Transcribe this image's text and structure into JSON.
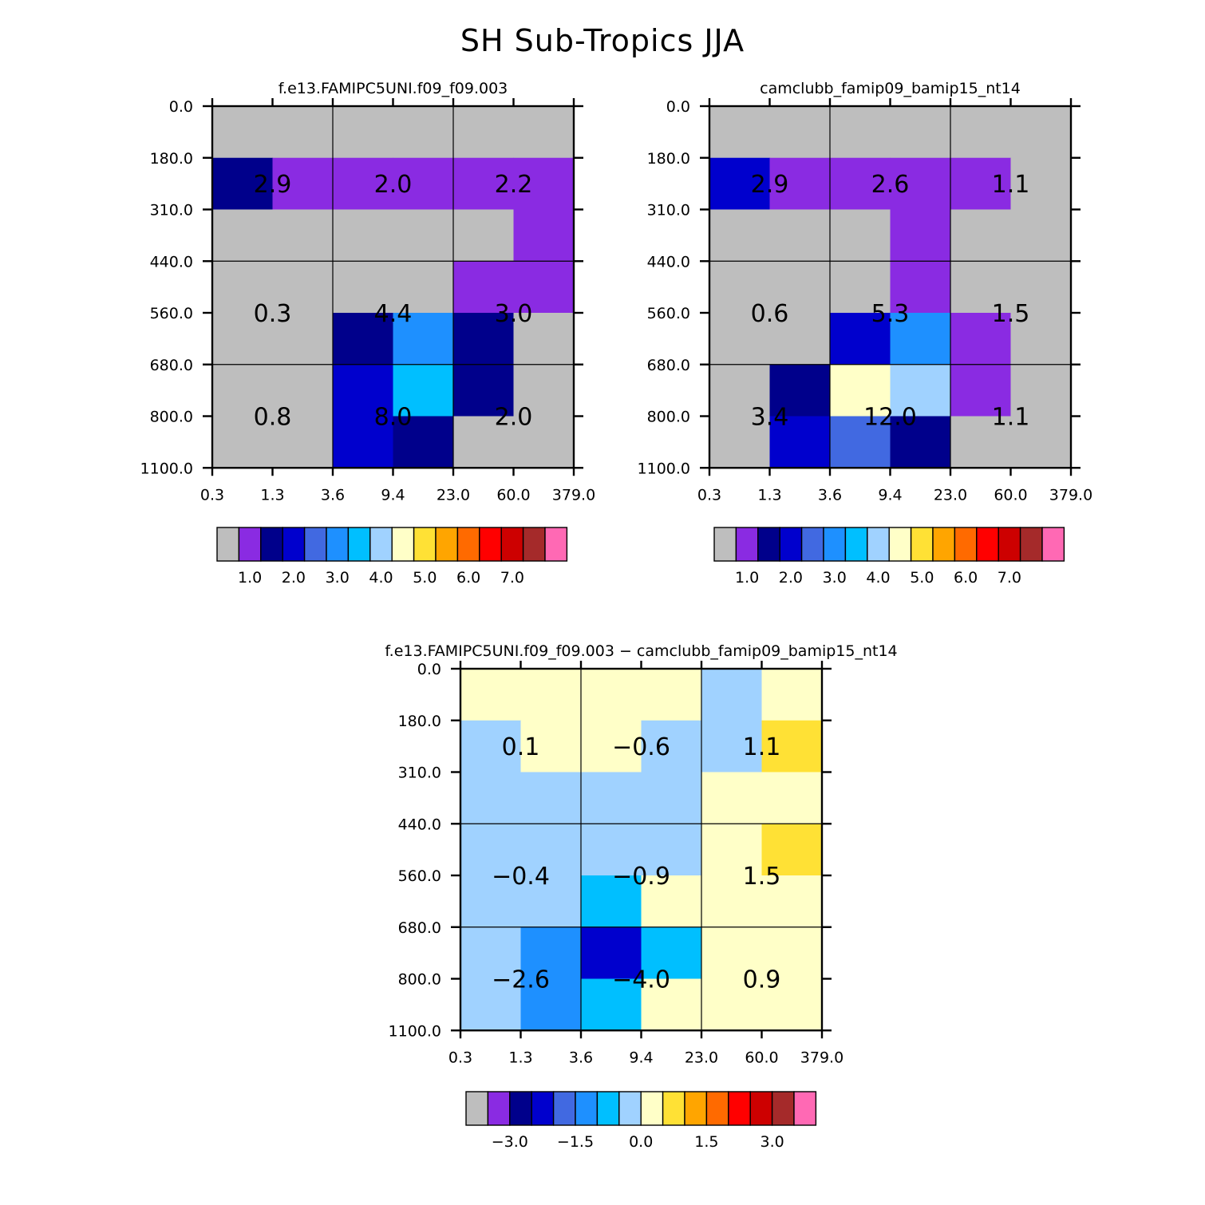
{
  "title": "SH Sub-Tropics JJA",
  "chart_data": [
    {
      "type": "heatmap",
      "title": "f.e13.FAMIPC5UNI.f09_f09.003",
      "x_ticks": [
        "0.3",
        "1.3",
        "3.6",
        "9.4",
        "23.0",
        "60.0",
        "379.0"
      ],
      "y_ticks": [
        "0.0",
        "180.0",
        "310.0",
        "440.0",
        "560.0",
        "680.0",
        "800.0",
        "1100.0"
      ],
      "cells": [
        [
          "#BEBEBE",
          "#BEBEBE",
          "#BEBEBE",
          "#BEBEBE",
          "#BEBEBE",
          "#BEBEBE"
        ],
        [
          "#00008B",
          "#8A2BE2",
          "#8A2BE2",
          "#8A2BE2",
          "#8A2BE2",
          "#8A2BE2"
        ],
        [
          "#BEBEBE",
          "#BEBEBE",
          "#BEBEBE",
          "#BEBEBE",
          "#BEBEBE",
          "#8A2BE2"
        ],
        [
          "#BEBEBE",
          "#BEBEBE",
          "#BEBEBE",
          "#BEBEBE",
          "#8A2BE2",
          "#8A2BE2"
        ],
        [
          "#BEBEBE",
          "#BEBEBE",
          "#00008B",
          "#1E90FF",
          "#00008B",
          "#BEBEBE"
        ],
        [
          "#BEBEBE",
          "#BEBEBE",
          "#0000CD",
          "#00BFFF",
          "#00008B",
          "#BEBEBE"
        ],
        [
          "#BEBEBE",
          "#BEBEBE",
          "#0000CD",
          "#00008B",
          "#BEBEBE",
          "#BEBEBE"
        ]
      ],
      "value_labels": [
        {
          "text": "2.9",
          "col": 1,
          "row": 1.5
        },
        {
          "text": "2.0",
          "col": 3,
          "row": 1.5
        },
        {
          "text": "2.2",
          "col": 5,
          "row": 1.5
        },
        {
          "text": "0.3",
          "col": 1,
          "row": 4
        },
        {
          "text": "4.4",
          "col": 3,
          "row": 4
        },
        {
          "text": "3.0",
          "col": 5,
          "row": 4
        },
        {
          "text": "0.8",
          "col": 1,
          "row": 6
        },
        {
          "text": "8.0",
          "col": 3,
          "row": 6
        },
        {
          "text": "2.0",
          "col": 5,
          "row": 6
        }
      ],
      "colorbar_colors": [
        "#BEBEBE",
        "#8A2BE2",
        "#00008B",
        "#0000CD",
        "#4169E1",
        "#1E90FF",
        "#00BFFF",
        "#A0D2FF",
        "#FFFFC8",
        "#FFE135",
        "#FFA500",
        "#FF6A00",
        "#FF0000",
        "#CD0000",
        "#A52A2A",
        "#FF69B4"
      ],
      "colorbar_labels": [
        "1.0",
        "2.0",
        "3.0",
        "4.0",
        "5.0",
        "6.0",
        "7.0"
      ],
      "colorbar_label_start": 1
    },
    {
      "type": "heatmap",
      "title": "camclubb_famip09_bamip15_nt14",
      "x_ticks": [
        "0.3",
        "1.3",
        "3.6",
        "9.4",
        "23.0",
        "60.0",
        "379.0"
      ],
      "y_ticks": [
        "0.0",
        "180.0",
        "310.0",
        "440.0",
        "560.0",
        "680.0",
        "800.0",
        "1100.0"
      ],
      "cells": [
        [
          "#BEBEBE",
          "#BEBEBE",
          "#BEBEBE",
          "#BEBEBE",
          "#BEBEBE",
          "#BEBEBE"
        ],
        [
          "#0000CD",
          "#8A2BE2",
          "#8A2BE2",
          "#8A2BE2",
          "#8A2BE2",
          "#BEBEBE"
        ],
        [
          "#BEBEBE",
          "#BEBEBE",
          "#BEBEBE",
          "#8A2BE2",
          "#BEBEBE",
          "#BEBEBE"
        ],
        [
          "#BEBEBE",
          "#BEBEBE",
          "#BEBEBE",
          "#8A2BE2",
          "#BEBEBE",
          "#BEBEBE"
        ],
        [
          "#BEBEBE",
          "#BEBEBE",
          "#0000CD",
          "#1E90FF",
          "#8A2BE2",
          "#BEBEBE"
        ],
        [
          "#BEBEBE",
          "#00008B",
          "#FFFFC8",
          "#A0D2FF",
          "#8A2BE2",
          "#BEBEBE"
        ],
        [
          "#BEBEBE",
          "#0000CD",
          "#4169E1",
          "#00008B",
          "#BEBEBE",
          "#BEBEBE"
        ]
      ],
      "value_labels": [
        {
          "text": "2.9",
          "col": 1,
          "row": 1.5
        },
        {
          "text": "2.6",
          "col": 3,
          "row": 1.5
        },
        {
          "text": "1.1",
          "col": 5,
          "row": 1.5
        },
        {
          "text": "0.6",
          "col": 1,
          "row": 4
        },
        {
          "text": "5.3",
          "col": 3,
          "row": 4
        },
        {
          "text": "1.5",
          "col": 5,
          "row": 4
        },
        {
          "text": "3.4",
          "col": 1,
          "row": 6
        },
        {
          "text": "12.0",
          "col": 3,
          "row": 6
        },
        {
          "text": "1.1",
          "col": 5,
          "row": 6
        }
      ],
      "colorbar_colors": [
        "#BEBEBE",
        "#8A2BE2",
        "#00008B",
        "#0000CD",
        "#4169E1",
        "#1E90FF",
        "#00BFFF",
        "#A0D2FF",
        "#FFFFC8",
        "#FFE135",
        "#FFA500",
        "#FF6A00",
        "#FF0000",
        "#CD0000",
        "#A52A2A",
        "#FF69B4"
      ],
      "colorbar_labels": [
        "1.0",
        "2.0",
        "3.0",
        "4.0",
        "5.0",
        "6.0",
        "7.0"
      ],
      "colorbar_label_start": 1
    },
    {
      "type": "heatmap",
      "title": "f.e13.FAMIPC5UNI.f09_f09.003 − camclubb_famip09_bamip15_nt14",
      "x_ticks": [
        "0.3",
        "1.3",
        "3.6",
        "9.4",
        "23.0",
        "60.0",
        "379.0"
      ],
      "y_ticks": [
        "0.0",
        "180.0",
        "310.0",
        "440.0",
        "560.0",
        "680.0",
        "800.0",
        "1100.0"
      ],
      "cells": [
        [
          "#FFFFC8",
          "#FFFFC8",
          "#FFFFC8",
          "#FFFFC8",
          "#A0D2FF",
          "#FFFFC8"
        ],
        [
          "#A0D2FF",
          "#FFFFC8",
          "#FFFFC8",
          "#A0D2FF",
          "#A0D2FF",
          "#FFE135"
        ],
        [
          "#A0D2FF",
          "#A0D2FF",
          "#A0D2FF",
          "#A0D2FF",
          "#FFFFC8",
          "#FFFFC8"
        ],
        [
          "#A0D2FF",
          "#A0D2FF",
          "#A0D2FF",
          "#A0D2FF",
          "#FFFFC8",
          "#FFE135"
        ],
        [
          "#A0D2FF",
          "#A0D2FF",
          "#00BFFF",
          "#FFFFC8",
          "#FFFFC8",
          "#FFFFC8"
        ],
        [
          "#A0D2FF",
          "#1E90FF",
          "#0000CD",
          "#00BFFF",
          "#FFFFC8",
          "#FFFFC8"
        ],
        [
          "#A0D2FF",
          "#1E90FF",
          "#00BFFF",
          "#FFFFC8",
          "#FFFFC8",
          "#FFFFC8"
        ]
      ],
      "value_labels": [
        {
          "text": "0.1",
          "col": 1,
          "row": 1.5
        },
        {
          "text": "−0.6",
          "col": 3,
          "row": 1.5
        },
        {
          "text": "1.1",
          "col": 5,
          "row": 1.5
        },
        {
          "text": "−0.4",
          "col": 1,
          "row": 4
        },
        {
          "text": "−0.9",
          "col": 3,
          "row": 4
        },
        {
          "text": "1.5",
          "col": 5,
          "row": 4
        },
        {
          "text": "−2.6",
          "col": 1,
          "row": 6
        },
        {
          "text": "−4.0",
          "col": 3,
          "row": 6
        },
        {
          "text": "0.9",
          "col": 5,
          "row": 6
        }
      ],
      "colorbar_colors": [
        "#BEBEBE",
        "#8A2BE2",
        "#00008B",
        "#0000CD",
        "#4169E1",
        "#1E90FF",
        "#00BFFF",
        "#A0D2FF",
        "#FFFFC8",
        "#FFE135",
        "#FFA500",
        "#FF6A00",
        "#FF0000",
        "#CD0000",
        "#A52A2A",
        "#FF69B4"
      ],
      "colorbar_labels": [
        "−3.0",
        "−1.5",
        "0.0",
        "1.5",
        "3.0"
      ],
      "colorbar_label_start": 1.5,
      "colorbar_label_step": 3
    }
  ]
}
